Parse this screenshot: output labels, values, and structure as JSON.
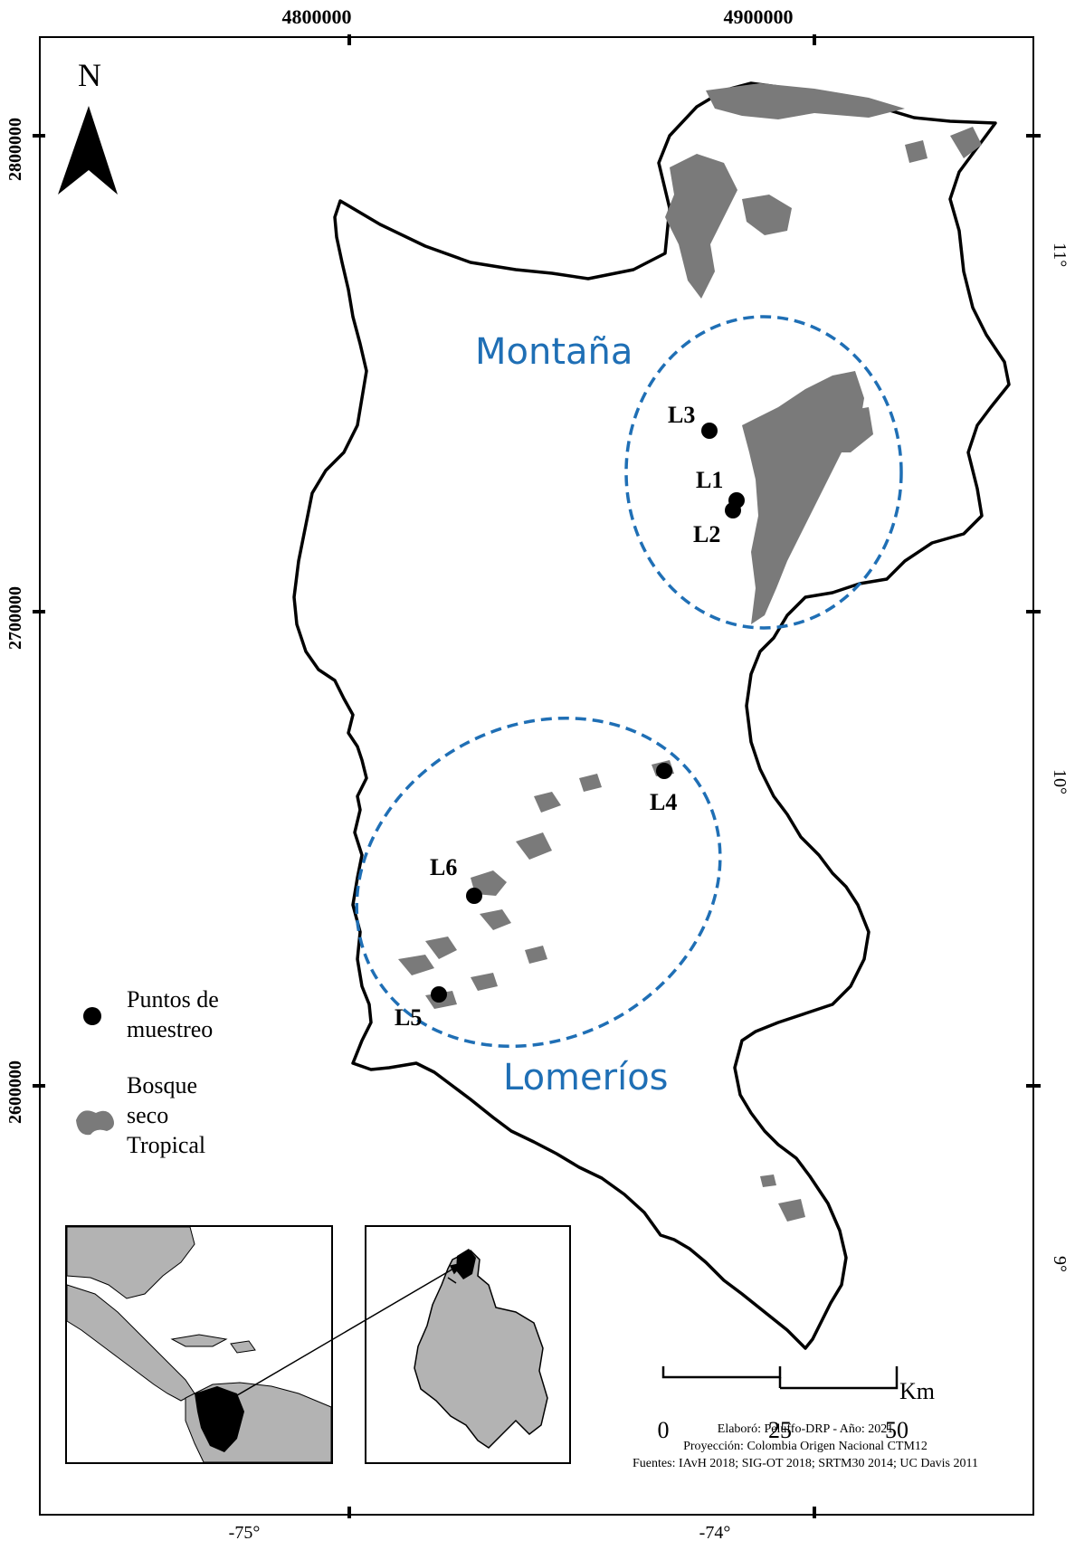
{
  "coords": {
    "top": [
      "4800000",
      "4900000"
    ],
    "bottom": [
      "-75°",
      "-74°"
    ],
    "left": [
      "2800000",
      "2700000",
      "2600000"
    ],
    "right": [
      "11°",
      "10°",
      "9°"
    ]
  },
  "north_label": "N",
  "zones": {
    "mountain": "Montaña",
    "hills": "Lomeríos"
  },
  "points": [
    "L1",
    "L2",
    "L3",
    "L4",
    "L5",
    "L6"
  ],
  "legend": {
    "points_label_1": "Puntos de",
    "points_label_2": "muestreo",
    "forest_label_1": "Bosque",
    "forest_label_2": "seco",
    "forest_label_3": "Tropical"
  },
  "scale": {
    "ticks": [
      "0",
      "25",
      "50"
    ],
    "unit": "Km"
  },
  "credits": {
    "line1": "Elaboró: Peluffo-DRP   -   Año: 2021",
    "line2": "Proyección: Colombia Origen Nacional CTM12",
    "line3": "Fuentes: IAvH 2018; SIG-OT 2018; SRTM30 2014; UC Davis 2011"
  },
  "colors": {
    "forest": "#7a7a7a",
    "zone": "#1f6fb5",
    "land_inset": "#b3b3b3"
  }
}
